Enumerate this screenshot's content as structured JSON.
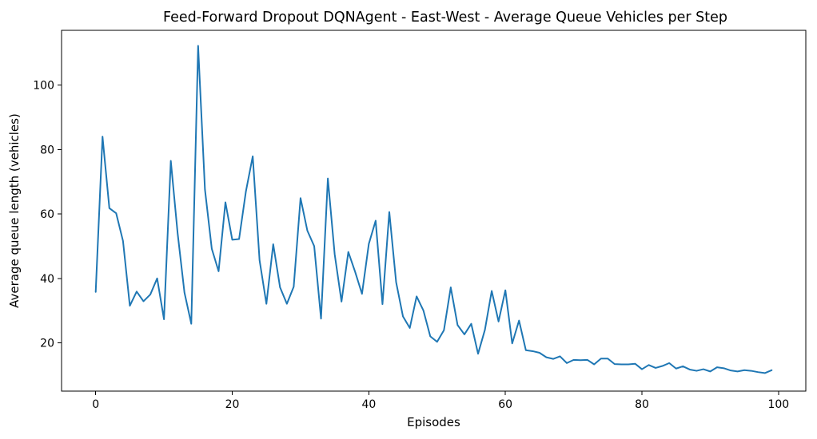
{
  "chart_data": {
    "type": "line",
    "title": "Feed-Forward Dropout DQNAgent - East-West - Average Queue Vehicles per Step",
    "xlabel": "Episodes",
    "ylabel": "Average queue length (vehicles)",
    "xlim": [
      -5,
      104
    ],
    "ylim": [
      5,
      117
    ],
    "xticks": [
      0,
      20,
      40,
      60,
      80,
      100
    ],
    "yticks": [
      20,
      40,
      60,
      80,
      100
    ],
    "grid": false,
    "legend": "none",
    "series": [
      {
        "color": "#1f77b4",
        "x": [
          0,
          1,
          2,
          3,
          4,
          5,
          6,
          7,
          8,
          9,
          10,
          11,
          12,
          13,
          14,
          15,
          16,
          17,
          18,
          19,
          20,
          21,
          22,
          23,
          24,
          25,
          26,
          27,
          28,
          29,
          30,
          31,
          32,
          33,
          34,
          35,
          36,
          37,
          38,
          39,
          40,
          41,
          42,
          43,
          44,
          45,
          46,
          47,
          48,
          49,
          50,
          51,
          52,
          53,
          54,
          55,
          56,
          57,
          58,
          59,
          60,
          61,
          62,
          63,
          64,
          65,
          66,
          67,
          68,
          69,
          70,
          71,
          72,
          73,
          74,
          75,
          76,
          77,
          78,
          79,
          80,
          81,
          82,
          83,
          84,
          85,
          86,
          87,
          88,
          89,
          90,
          91,
          92,
          93,
          94,
          95,
          96,
          97,
          98,
          99
        ],
        "values": [
          35.8,
          84.0,
          61.8,
          60.2,
          51.6,
          31.5,
          35.9,
          32.9,
          35.0,
          40.0,
          27.3,
          76.5,
          54.0,
          35.6,
          25.9,
          112.2,
          67.6,
          49.2,
          42.2,
          63.6,
          52.0,
          52.2,
          67.0,
          77.9,
          45.6,
          32.1,
          50.6,
          37.2,
          32.1,
          37.4,
          64.9,
          54.8,
          50.0,
          27.5,
          71.0,
          47.5,
          32.8,
          48.2,
          42.0,
          35.2,
          50.7,
          57.9,
          32.0,
          60.6,
          38.8,
          28.2,
          24.6,
          34.4,
          30.0,
          22.0,
          20.3,
          23.9,
          37.2,
          25.5,
          22.6,
          25.9,
          16.6,
          24.0,
          36.1,
          26.6,
          36.3,
          19.8,
          26.9,
          17.7,
          17.4,
          16.9,
          15.5,
          15.0,
          15.8,
          13.7,
          14.7,
          14.6,
          14.7,
          13.3,
          15.1,
          15.1,
          13.4,
          13.3,
          13.3,
          13.5,
          11.8,
          13.1,
          12.2,
          12.8,
          13.7,
          12.0,
          12.7,
          11.7,
          11.3,
          11.8,
          11.1,
          12.4,
          12.1,
          11.4,
          11.1,
          11.5,
          11.3,
          10.9,
          10.6,
          11.5
        ]
      }
    ]
  }
}
